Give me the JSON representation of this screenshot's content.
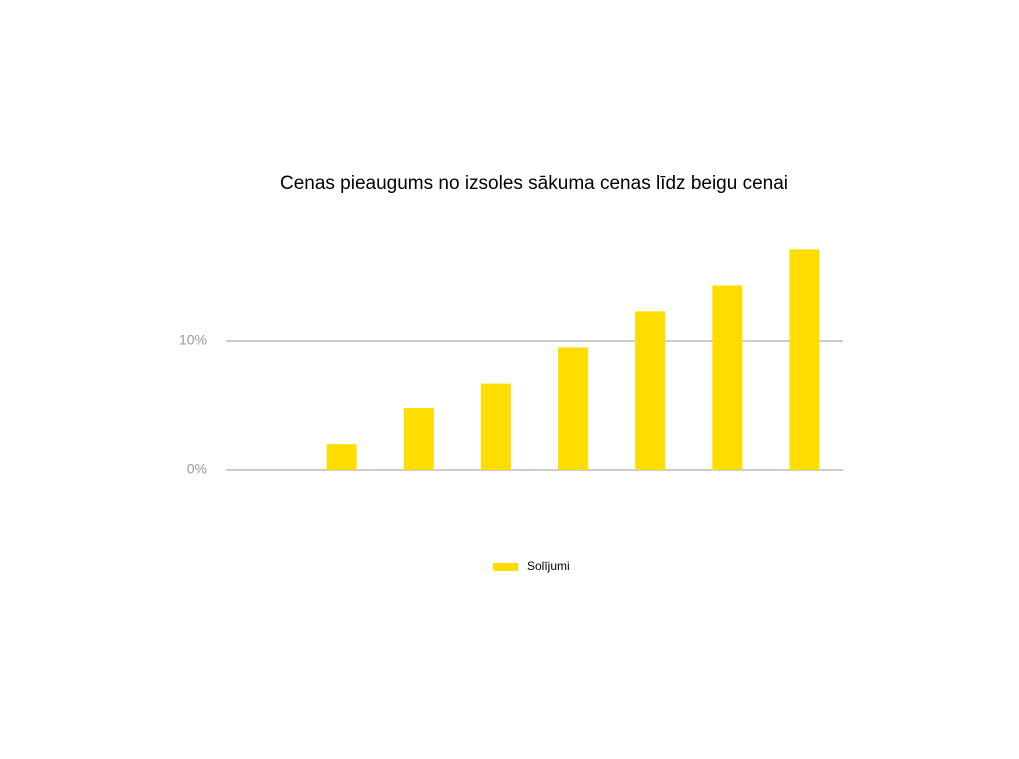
{
  "chart_data": {
    "type": "bar",
    "title": "Cenas pieaugums no izsoles sākuma cenas līdz beigu cenai",
    "categories": [
      null,
      null,
      null,
      null,
      null,
      null,
      null,
      null
    ],
    "series": [
      {
        "name": "Solījumi",
        "color": "#ffdd00",
        "values": [
          0,
          2,
          4.8,
          6.7,
          9.5,
          12.3,
          14.3,
          17.1
        ]
      }
    ],
    "ylim": [
      0,
      20
    ],
    "yticks": [
      {
        "value": 0,
        "label": "0%"
      },
      {
        "value": 10,
        "label": "10%"
      }
    ],
    "grid": true,
    "legend": "bottom"
  }
}
